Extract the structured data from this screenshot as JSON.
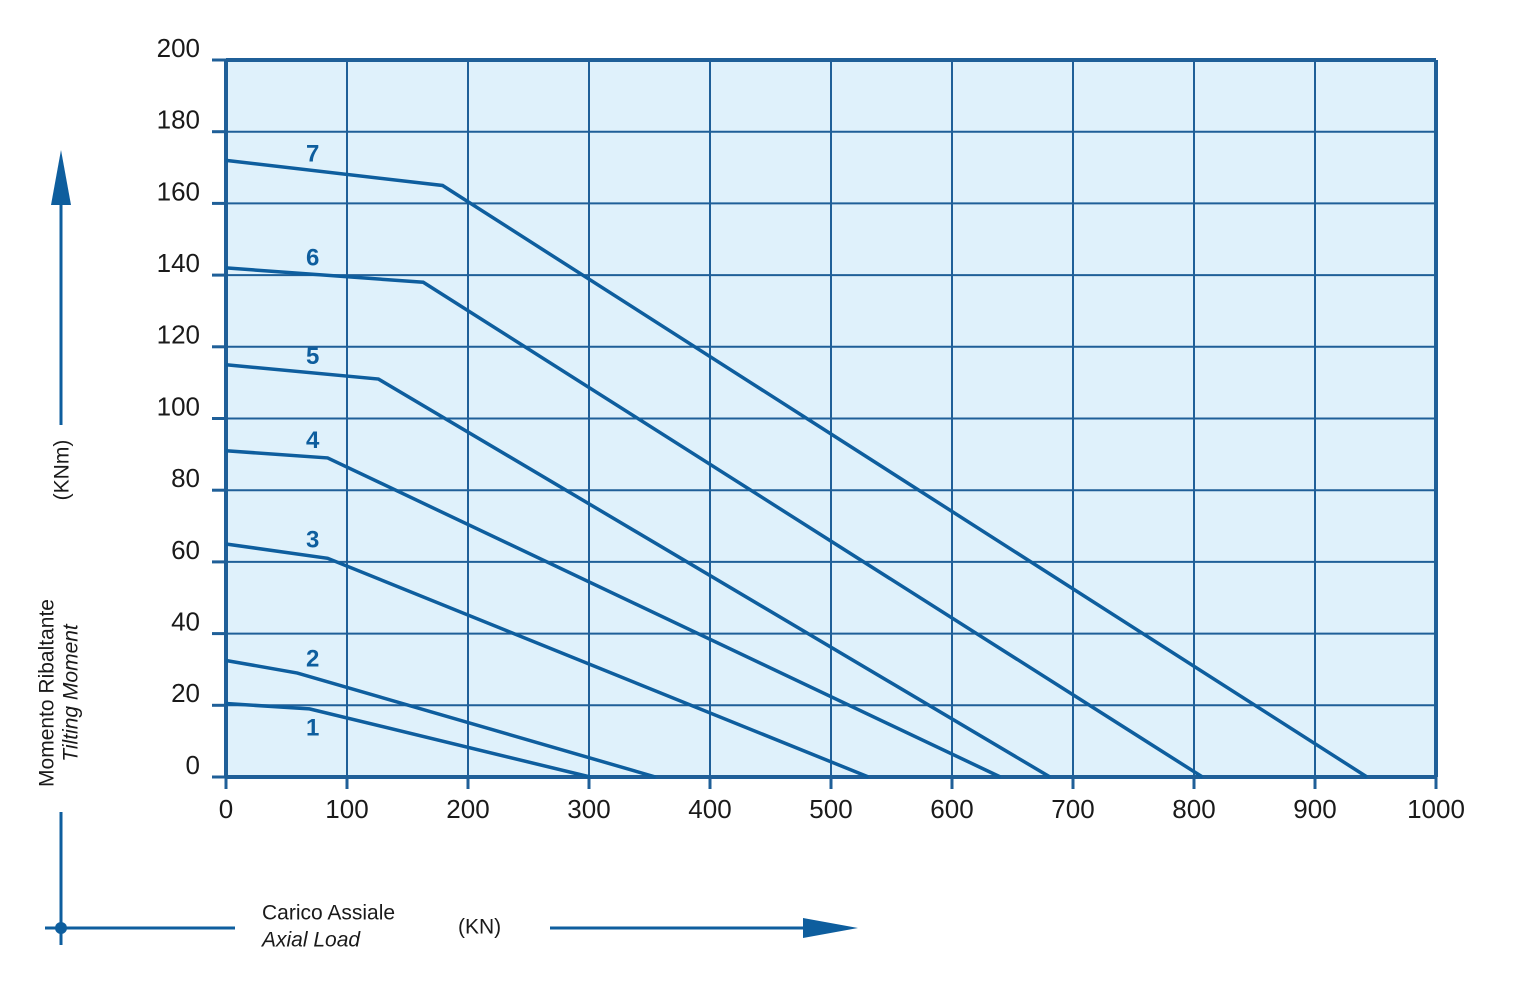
{
  "chart_data": {
    "type": "line",
    "y_label": "Momento Ribaltante",
    "y_label_en": "Tilting Moment",
    "y_unit": "(KNm)",
    "x_label": "Carico Assiale",
    "x_label_en": "Axial Load",
    "x_unit": "(KN)",
    "xlim": [
      0,
      1000
    ],
    "xticks": [
      0,
      100,
      200,
      300,
      400,
      500,
      600,
      700,
      800,
      900,
      1000
    ],
    "ylim": [
      0,
      200
    ],
    "yticks": [
      0,
      20,
      40,
      60,
      80,
      100,
      120,
      140,
      160,
      180,
      200
    ],
    "grid": true,
    "background": "#dff1fb",
    "grid_color": "#1f5f98",
    "series": [
      {
        "name": "1",
        "color": "#0e5e9e",
        "x": [
          0,
          69,
          301
        ],
        "values": [
          20.5,
          19,
          0
        ]
      },
      {
        "name": "2",
        "color": "#0e5e9e",
        "x": [
          0,
          59,
          355
        ],
        "values": [
          32.5,
          29,
          0
        ]
      },
      {
        "name": "3",
        "color": "#0e5e9e",
        "x": [
          0,
          84,
          531
        ],
        "values": [
          65,
          61,
          0
        ]
      },
      {
        "name": "4",
        "color": "#0e5e9e",
        "x": [
          0,
          84,
          640
        ],
        "values": [
          91,
          89,
          0
        ]
      },
      {
        "name": "5",
        "color": "#0e5e9e",
        "x": [
          0,
          126,
          681
        ],
        "values": [
          115,
          111,
          0
        ]
      },
      {
        "name": "6",
        "color": "#0e5e9e",
        "x": [
          0,
          163,
          807
        ],
        "values": [
          142,
          138,
          0
        ]
      },
      {
        "name": "7",
        "color": "#0e5e9e",
        "x": [
          0,
          179,
          943
        ],
        "values": [
          172,
          165,
          0
        ]
      }
    ]
  }
}
